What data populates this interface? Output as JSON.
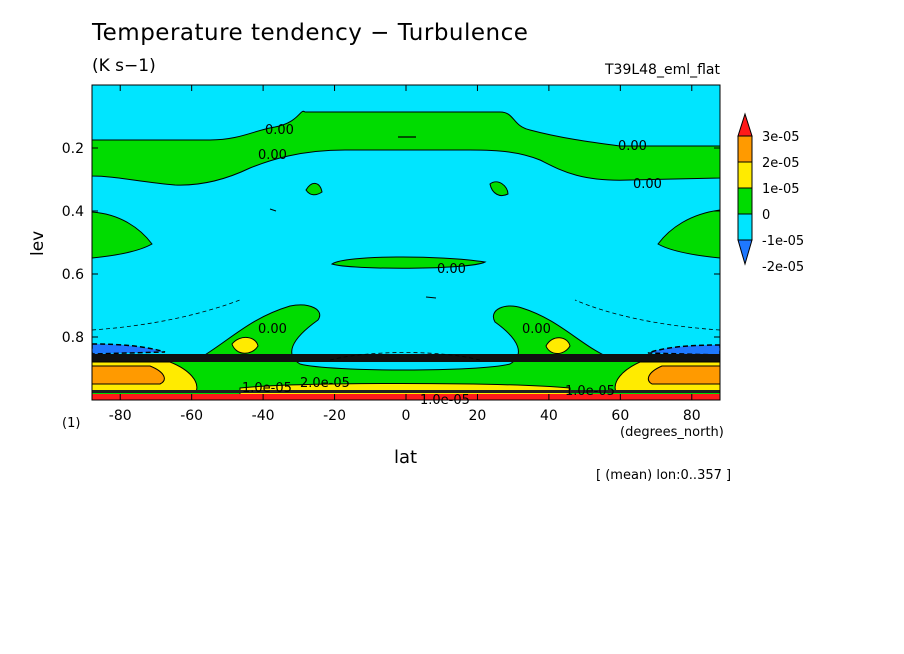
{
  "title": "Temperature tendency − Turbulence",
  "units": "(K s−1)",
  "run_name": "T39L48_eml_flat",
  "x_note": "(degrees_north)",
  "y_note": "(1)",
  "lon_note": "[ (mean) lon:0..357 ]",
  "chart_data": {
    "type": "heatmap",
    "title": "Temperature tendency − Turbulence",
    "xlabel": "lat",
    "ylabel": "lev",
    "xlim": [
      -87.9,
      87.9
    ],
    "ylim": [
      0.0,
      1.0
    ],
    "y_inverted": true,
    "xticks": [
      -80,
      -60,
      -40,
      -20,
      0,
      20,
      40,
      60,
      80
    ],
    "xtick_labels": [
      "-80",
      "-60",
      "-40",
      "-20",
      "0",
      "20",
      "40",
      "60",
      "80"
    ],
    "yticks": [
      0.2,
      0.4,
      0.6,
      0.8
    ],
    "ytick_labels": [
      "0.2",
      "0.4",
      "0.6",
      "0.8"
    ],
    "colorbar": {
      "levels": [
        -2e-05,
        -1e-05,
        0,
        1e-05,
        2e-05,
        3e-05
      ],
      "labels": [
        "-2e-05",
        "-1e-05",
        "0",
        "1e-05",
        "2e-05",
        "3e-05"
      ],
      "colors": [
        "#1e78ff",
        "#00e5ff",
        "#00dc00",
        "#ffeb00",
        "#ff9a00",
        "#ff1a1a"
      ],
      "extend": "both"
    },
    "contour_labels": [
      "0.00",
      "0.00",
      "0.00",
      "0.00",
      "0.00",
      "0.00",
      "0.00",
      "1.0e-05",
      "1.0e-05",
      "1.0e-05",
      "2.0e-05"
    ],
    "background_level": "-1e-05 to 0"
  },
  "colors": {
    "neg2": "#1e78ff",
    "neg1": "#00e5ff",
    "zero": "#00dc00",
    "pos1": "#ffeb00",
    "pos2": "#ff9a00",
    "pos3": "#ff1a1a"
  }
}
